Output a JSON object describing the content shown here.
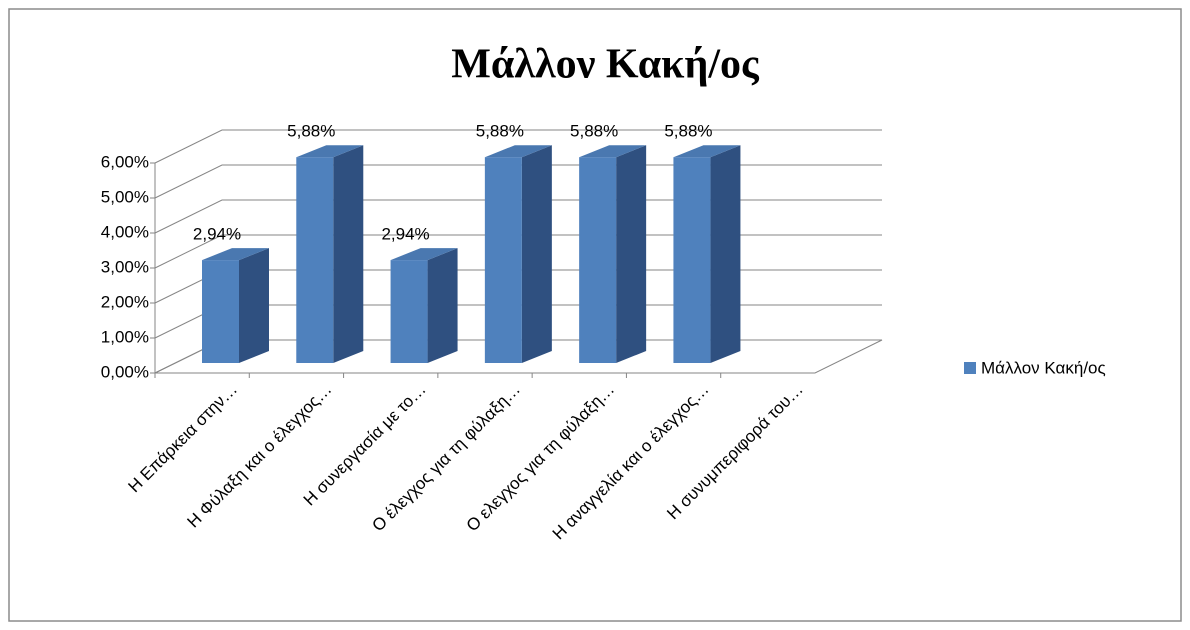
{
  "chart_data": {
    "type": "bar3d",
    "title": "Μάλλον Κακή/ος",
    "categories": [
      "Η Επάρκεια στην…",
      "Η Φύλαξη και ο έλεγχος…",
      "Η συνεργασία με το…",
      "Ο έλεγχος για τη φύλαξη…",
      "Ο ελεγχος για τη φύλαξη…",
      "Η αναγγελία και ο έλεγχος…",
      "Η συνυμπεριφορά του…"
    ],
    "series": [
      {
        "name": "Μάλλον Κακή/ος",
        "color": "#4f81bd",
        "values": [
          2.94,
          5.88,
          2.94,
          5.88,
          5.88,
          5.88,
          null
        ],
        "value_labels": [
          "2,94%",
          "5,88%",
          "2,94%",
          "5,88%",
          "5,88%",
          "5,88%",
          null
        ]
      }
    ],
    "ylim": [
      0,
      6
    ],
    "yticks": [
      {
        "value": 0,
        "label": "0,00%"
      },
      {
        "value": 1,
        "label": "1,00%"
      },
      {
        "value": 2,
        "label": "2,00%"
      },
      {
        "value": 3,
        "label": "3,00%"
      },
      {
        "value": 4,
        "label": "4,00%"
      },
      {
        "value": 5,
        "label": "5,00%"
      },
      {
        "value": 6,
        "label": "6,00%"
      }
    ],
    "grid": true,
    "legend": "right"
  }
}
